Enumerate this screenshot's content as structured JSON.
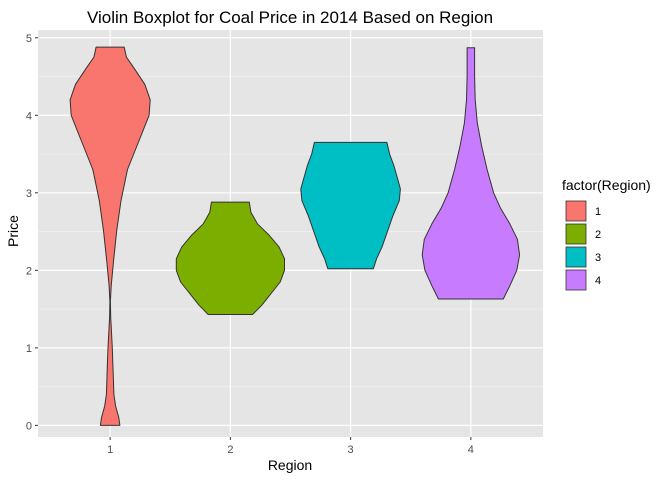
{
  "chart_data": {
    "type": "violin",
    "title": "Violin Boxplot for Coal Price in 2014 Based on Region",
    "xlabel": "Region",
    "ylabel": "Price",
    "categories": [
      "1",
      "2",
      "3",
      "4"
    ],
    "ylim": [
      -0.15,
      5.1
    ],
    "yticks": [
      0,
      1,
      2,
      3,
      4,
      5
    ],
    "grid": true,
    "panel_background": "#e5e5e5",
    "legend": {
      "title": "factor(Region)",
      "position": "right",
      "entries": [
        {
          "label": "1",
          "color": "#F8766D"
        },
        {
          "label": "2",
          "color": "#7CAE00"
        },
        {
          "label": "3",
          "color": "#00BFC4"
        },
        {
          "label": "4",
          "color": "#C77CFF"
        }
      ]
    },
    "violins": [
      {
        "category": "1",
        "color": "#F8766D",
        "y_min": 0.0,
        "y_max": 4.88,
        "density": [
          [
            0.0,
            0.18
          ],
          [
            0.1,
            0.16
          ],
          [
            0.25,
            0.1
          ],
          [
            0.4,
            0.07
          ],
          [
            0.6,
            0.06
          ],
          [
            0.8,
            0.05
          ],
          [
            1.0,
            0.04
          ],
          [
            1.2,
            0.025
          ],
          [
            1.4,
            0.01
          ],
          [
            1.6,
            0.005
          ],
          [
            1.8,
            0.02
          ],
          [
            2.1,
            0.06
          ],
          [
            2.5,
            0.12
          ],
          [
            2.9,
            0.2
          ],
          [
            3.3,
            0.32
          ],
          [
            3.7,
            0.55
          ],
          [
            4.0,
            0.72
          ],
          [
            4.2,
            0.74
          ],
          [
            4.4,
            0.64
          ],
          [
            4.6,
            0.45
          ],
          [
            4.75,
            0.3
          ],
          [
            4.88,
            0.26
          ]
        ]
      },
      {
        "category": "2",
        "color": "#7CAE00",
        "y_min": 1.43,
        "y_max": 2.88,
        "density": [
          [
            1.43,
            0.41
          ],
          [
            1.55,
            0.58
          ],
          [
            1.7,
            0.75
          ],
          [
            1.85,
            0.92
          ],
          [
            2.0,
            1.0
          ],
          [
            2.15,
            1.0
          ],
          [
            2.3,
            0.9
          ],
          [
            2.45,
            0.72
          ],
          [
            2.6,
            0.5
          ],
          [
            2.75,
            0.38
          ],
          [
            2.88,
            0.35
          ]
        ]
      },
      {
        "category": "3",
        "color": "#00BFC4",
        "y_min": 2.02,
        "y_max": 3.65,
        "density": [
          [
            2.02,
            0.42
          ],
          [
            2.15,
            0.48
          ],
          [
            2.3,
            0.58
          ],
          [
            2.5,
            0.68
          ],
          [
            2.7,
            0.78
          ],
          [
            2.9,
            0.9
          ],
          [
            3.05,
            0.92
          ],
          [
            3.2,
            0.86
          ],
          [
            3.35,
            0.8
          ],
          [
            3.5,
            0.72
          ],
          [
            3.65,
            0.67
          ]
        ]
      },
      {
        "category": "4",
        "color": "#C77CFF",
        "y_min": 1.63,
        "y_max": 4.87,
        "density": [
          [
            1.63,
            0.6
          ],
          [
            1.8,
            0.72
          ],
          [
            2.0,
            0.85
          ],
          [
            2.2,
            0.9
          ],
          [
            2.4,
            0.86
          ],
          [
            2.6,
            0.72
          ],
          [
            2.8,
            0.55
          ],
          [
            3.0,
            0.42
          ],
          [
            3.3,
            0.3
          ],
          [
            3.6,
            0.2
          ],
          [
            3.9,
            0.12
          ],
          [
            4.2,
            0.08
          ],
          [
            4.5,
            0.07
          ],
          [
            4.7,
            0.07
          ],
          [
            4.87,
            0.07
          ]
        ]
      }
    ]
  }
}
